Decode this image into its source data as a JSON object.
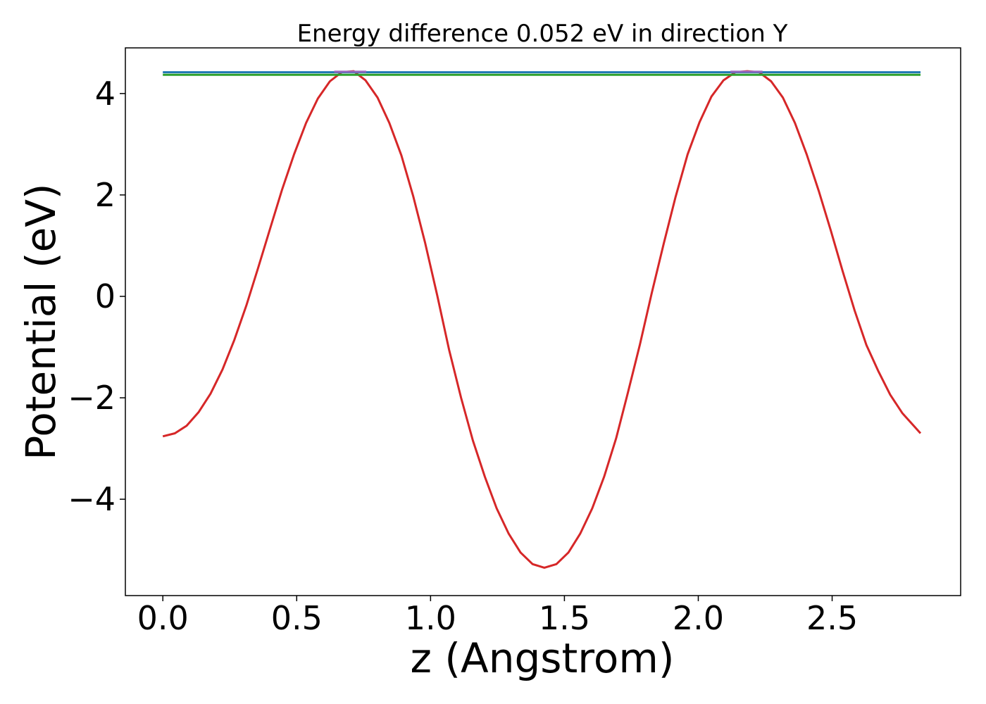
{
  "chart_data": {
    "type": "line",
    "title": "Energy difference 0.052 eV in direction Y",
    "xlabel": "z (Angstrom)",
    "ylabel": "Potential (eV)",
    "xlim": [
      -0.14,
      2.98
    ],
    "ylim": [
      -5.9,
      4.9
    ],
    "x_ticks": [
      0.0,
      0.5,
      1.0,
      1.5,
      2.0,
      2.5
    ],
    "x_tick_labels": [
      "0.0",
      "0.5",
      "1.0",
      "1.5",
      "2.0",
      "2.5"
    ],
    "y_ticks": [
      -4,
      -2,
      0,
      2,
      4
    ],
    "y_tick_labels": [
      "−4",
      "−2",
      "0",
      "2",
      "4"
    ],
    "grid": false,
    "series": [
      {
        "color": "#d62728",
        "x": [
          0.0,
          0.045,
          0.089,
          0.134,
          0.178,
          0.223,
          0.267,
          0.312,
          0.356,
          0.401,
          0.445,
          0.49,
          0.535,
          0.579,
          0.624,
          0.668,
          0.713,
          0.757,
          0.802,
          0.846,
          0.891,
          0.935,
          0.98,
          1.025,
          1.069,
          1.114,
          1.158,
          1.203,
          1.247,
          1.292,
          1.336,
          1.381,
          1.425,
          1.47,
          1.515,
          1.559,
          1.604,
          1.648,
          1.693,
          1.737,
          1.782,
          1.826,
          1.871,
          1.915,
          1.96,
          2.005,
          2.049,
          2.094,
          2.138,
          2.183,
          2.227,
          2.272,
          2.316,
          2.361,
          2.405,
          2.45,
          2.495,
          2.539,
          2.584,
          2.628,
          2.673,
          2.717,
          2.762,
          2.806,
          2.83
        ],
        "y": [
          -2.76,
          -2.7,
          -2.55,
          -2.28,
          -1.92,
          -1.44,
          -0.86,
          -0.18,
          0.56,
          1.34,
          2.1,
          2.8,
          3.42,
          3.9,
          4.24,
          4.42,
          4.44,
          4.26,
          3.92,
          3.42,
          2.78,
          1.98,
          1.05,
          0.02,
          -1.05,
          -2.0,
          -2.84,
          -3.56,
          -4.18,
          -4.68,
          -5.05,
          -5.28,
          -5.35,
          -5.28,
          -5.05,
          -4.68,
          -4.18,
          -3.56,
          -2.8,
          -1.9,
          -0.95,
          0.06,
          1.04,
          1.96,
          2.8,
          3.44,
          3.94,
          4.26,
          4.42,
          4.44,
          4.42,
          4.24,
          3.92,
          3.42,
          2.8,
          2.08,
          1.3,
          0.5,
          -0.28,
          -0.96,
          -1.48,
          -1.94,
          -2.3,
          -2.56,
          -2.7
        ]
      },
      {
        "color": "#1f77b4",
        "x": [
          0.0,
          2.83
        ],
        "y": [
          4.42,
          4.42
        ]
      },
      {
        "color": "#2ca02c",
        "x": [
          0.0,
          2.83
        ],
        "y": [
          4.37,
          4.37
        ]
      },
      {
        "color": "#9467bd",
        "x": [
          0.64,
          0.76
        ],
        "y": [
          4.43,
          4.43
        ]
      },
      {
        "color": "#9467bd",
        "x": [
          2.12,
          2.24
        ],
        "y": [
          4.43,
          4.43
        ]
      }
    ]
  }
}
